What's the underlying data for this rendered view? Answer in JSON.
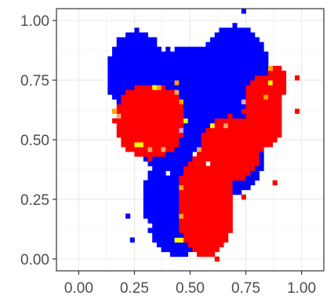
{
  "chart_data": {
    "type": "heatmap",
    "title": "",
    "xlabel": "",
    "ylabel": "",
    "xlim": [
      -0.1,
      1.1
    ],
    "ylim": [
      -0.05,
      1.05
    ],
    "x_ticks": [
      0.0,
      0.25,
      0.5,
      0.75,
      1.0
    ],
    "y_ticks": [
      0.0,
      0.25,
      0.5,
      0.75,
      1.0
    ],
    "x_tick_labels": [
      "0.00",
      "0.25",
      "0.50",
      "0.75",
      "1.00"
    ],
    "y_tick_labels": [
      "0.00",
      "0.25",
      "0.50",
      "0.75",
      "1.00"
    ],
    "grid": true,
    "legend": "none",
    "cell_size": 0.02,
    "colors": {
      "blue": "#0000ff",
      "red": "#ff0000",
      "yellow": "#ffff00",
      "orange": "#ffa500",
      "tan": "#f4a460",
      "plum": "#dda0dd",
      "grid": "#ebebeb",
      "panel_border": "#333333",
      "tick_text": "#4d4d4d"
    },
    "regions": {
      "blue": [
        {
          "cx": 0.26,
          "cy": 0.78,
          "rx": 0.13,
          "ry": 0.18
        },
        {
          "cx": 0.7,
          "cy": 0.8,
          "rx": 0.15,
          "ry": 0.18
        },
        {
          "cx": 0.53,
          "cy": 0.6,
          "rx": 0.3,
          "ry": 0.3
        },
        {
          "cx": 0.45,
          "cy": 0.24,
          "rx": 0.16,
          "ry": 0.23
        },
        {
          "cx": 0.4,
          "cy": 0.68,
          "rx": 0.22,
          "ry": 0.2
        },
        {
          "cx": 0.62,
          "cy": 0.45,
          "rx": 0.22,
          "ry": 0.2
        }
      ],
      "red": [
        {
          "cx": 0.32,
          "cy": 0.58,
          "rx": 0.16,
          "ry": 0.16
        },
        {
          "cx": 0.57,
          "cy": 0.23,
          "rx": 0.13,
          "ry": 0.22
        },
        {
          "cx": 0.68,
          "cy": 0.46,
          "rx": 0.14,
          "ry": 0.14
        },
        {
          "cx": 0.83,
          "cy": 0.62,
          "rx": 0.09,
          "ry": 0.16
        },
        {
          "cx": 0.89,
          "cy": 0.74,
          "rx": 0.05,
          "ry": 0.07
        }
      ]
    },
    "accents": [
      {
        "x": 0.18,
        "y": 0.6,
        "color": "tan"
      },
      {
        "x": 0.16,
        "y": 0.62,
        "color": "orange"
      },
      {
        "x": 0.26,
        "y": 0.48,
        "color": "yellow"
      },
      {
        "x": 0.28,
        "y": 0.48,
        "color": "yellow"
      },
      {
        "x": 0.32,
        "y": 0.46,
        "color": "tan"
      },
      {
        "x": 0.34,
        "y": 0.72,
        "color": "yellow"
      },
      {
        "x": 0.36,
        "y": 0.72,
        "color": "orange"
      },
      {
        "x": 0.44,
        "y": 0.74,
        "color": "orange"
      },
      {
        "x": 0.46,
        "y": 0.66,
        "color": "orange"
      },
      {
        "x": 0.48,
        "y": 0.58,
        "color": "yellow"
      },
      {
        "x": 0.46,
        "y": 0.54,
        "color": "plum"
      },
      {
        "x": 0.44,
        "y": 0.7,
        "color": "tan"
      },
      {
        "x": 0.38,
        "y": 0.46,
        "color": "tan"
      },
      {
        "x": 0.54,
        "y": 0.46,
        "color": "tan"
      },
      {
        "x": 0.46,
        "y": 0.3,
        "color": "orange"
      },
      {
        "x": 0.46,
        "y": 0.18,
        "color": "orange"
      },
      {
        "x": 0.44,
        "y": 0.08,
        "color": "yellow"
      },
      {
        "x": 0.46,
        "y": 0.08,
        "color": "yellow"
      },
      {
        "x": 0.6,
        "y": 0.56,
        "color": "yellow"
      },
      {
        "x": 0.66,
        "y": 0.56,
        "color": "tan"
      },
      {
        "x": 0.74,
        "y": 0.66,
        "color": "plum"
      },
      {
        "x": 0.84,
        "y": 0.68,
        "color": "orange"
      },
      {
        "x": 0.86,
        "y": 0.74,
        "color": "yellow"
      },
      {
        "x": 0.86,
        "y": 0.8,
        "color": "orange"
      }
    ],
    "scattered_cells": [
      {
        "x": 0.74,
        "y": 1.04,
        "color": "blue"
      },
      {
        "x": 0.98,
        "y": 0.76,
        "color": "red"
      },
      {
        "x": 0.56,
        "y": 0.76,
        "color": "blue"
      },
      {
        "x": 0.88,
        "y": 0.32,
        "color": "red"
      },
      {
        "x": 0.76,
        "y": 0.38,
        "color": "red"
      },
      {
        "x": 0.74,
        "y": 0.26,
        "color": "red"
      },
      {
        "x": 0.62,
        "y": 0.0,
        "color": "red"
      },
      {
        "x": 0.58,
        "y": 0.04,
        "color": "red"
      },
      {
        "x": 0.24,
        "y": 0.08,
        "color": "blue"
      },
      {
        "x": 0.22,
        "y": 0.18,
        "color": "blue"
      },
      {
        "x": 0.14,
        "y": 0.7,
        "color": "blue"
      },
      {
        "x": 0.98,
        "y": 0.62,
        "color": "red"
      }
    ],
    "notches": [
      {
        "x": 0.56,
        "y": 0.76
      },
      {
        "x": 0.52,
        "y": 0.44
      },
      {
        "x": 0.58,
        "y": 0.4
      },
      {
        "x": 0.4,
        "y": 0.36
      },
      {
        "x": 0.32,
        "y": 0.14
      },
      {
        "x": 0.3,
        "y": 0.16
      }
    ]
  }
}
